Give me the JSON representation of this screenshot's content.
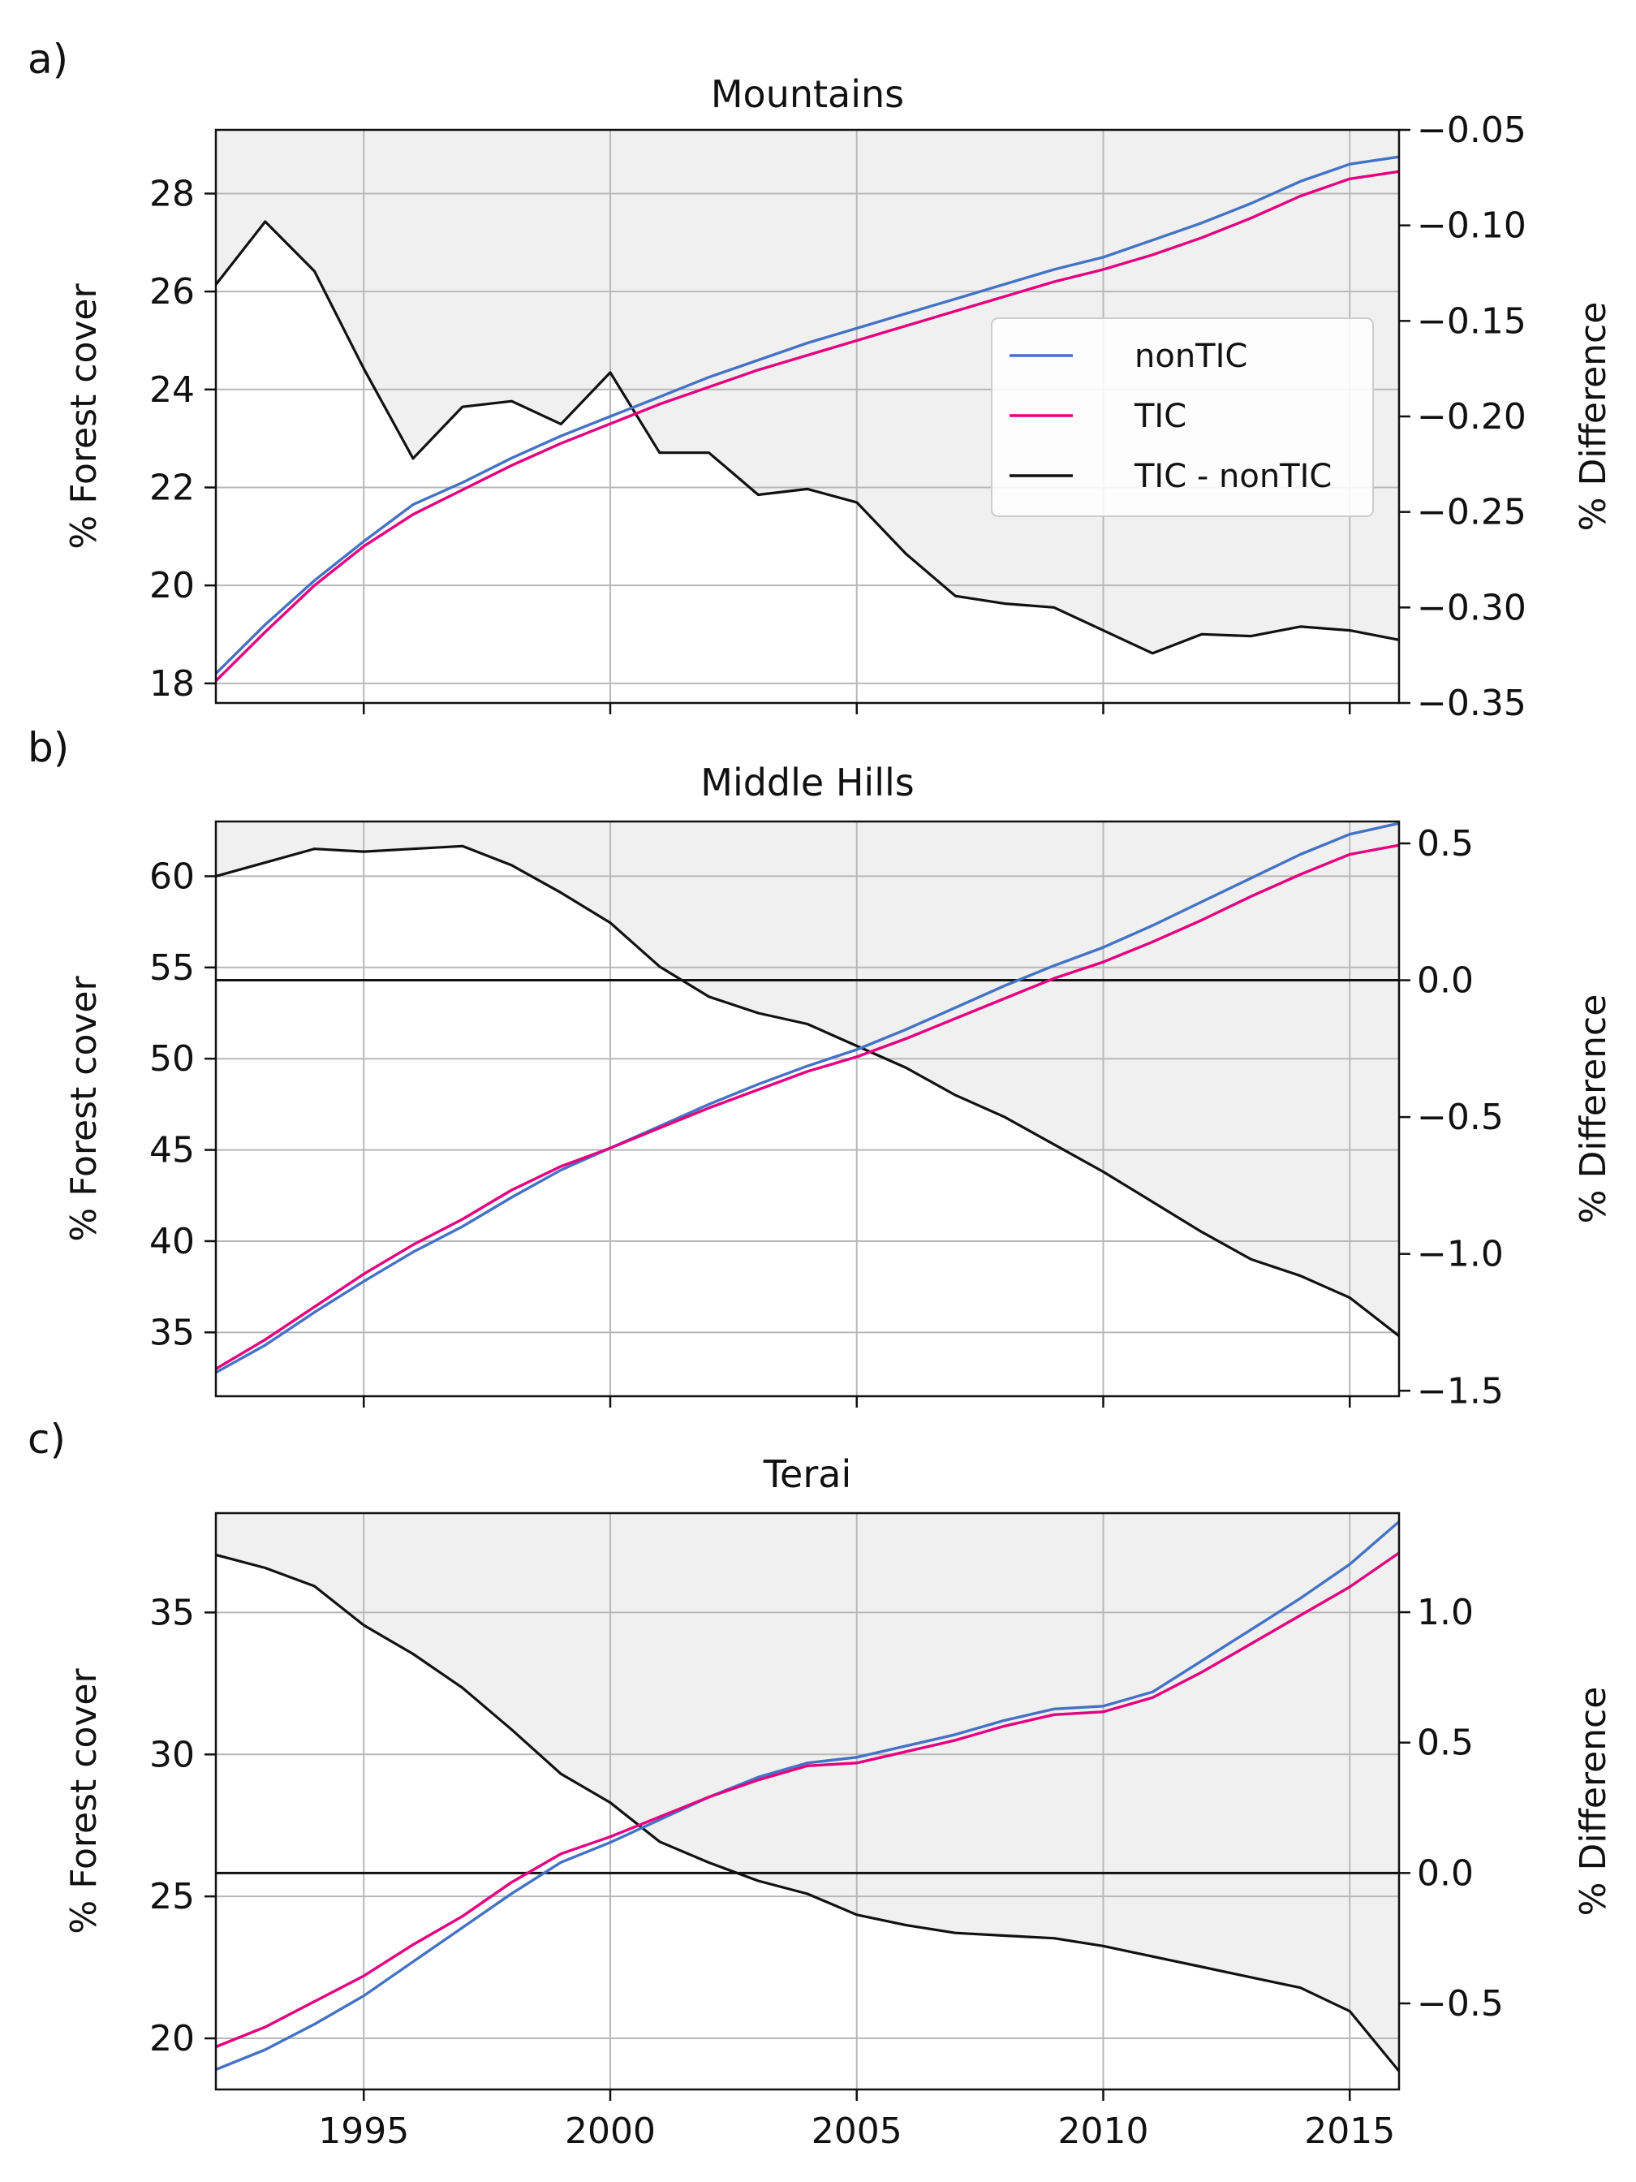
{
  "chart_data": [
    {
      "type": "line",
      "panel_label": "a)",
      "title": "Mountains",
      "xlabel": "",
      "ylabel": "% Forest cover",
      "ylabel_right": "% Difference",
      "xlim": [
        1992,
        2016
      ],
      "ylim": [
        17.6,
        29.3
      ],
      "ylim_right": [
        -0.35,
        -0.05
      ],
      "yticks": [
        18,
        20,
        22,
        24,
        26,
        28
      ],
      "yticks_right": [
        -0.35,
        -0.3,
        -0.25,
        -0.2,
        -0.15,
        -0.1,
        -0.05
      ],
      "ytick_labels_right": [
        "−0.35",
        "−0.30",
        "−0.25",
        "−0.20",
        "−0.15",
        "−0.10",
        "−0.05"
      ],
      "x": [
        1992,
        1993,
        1994,
        1995,
        1996,
        1997,
        1998,
        1999,
        2000,
        2001,
        2002,
        2003,
        2004,
        2005,
        2006,
        2007,
        2008,
        2009,
        2010,
        2011,
        2012,
        2013,
        2014,
        2015,
        2016
      ],
      "series": [
        {
          "name": "nonTIC",
          "axis": "left",
          "color": "#4472c4",
          "values": [
            18.2,
            19.2,
            20.1,
            20.9,
            21.65,
            22.1,
            22.6,
            23.05,
            23.45,
            23.85,
            24.25,
            24.6,
            24.95,
            25.25,
            25.55,
            25.85,
            26.15,
            26.45,
            26.7,
            27.05,
            27.4,
            27.8,
            28.25,
            28.6,
            28.75
          ]
        },
        {
          "name": "TIC",
          "axis": "left",
          "color": "#e6007e",
          "values": [
            18.05,
            19.05,
            20.0,
            20.8,
            21.45,
            21.95,
            22.45,
            22.9,
            23.3,
            23.7,
            24.05,
            24.4,
            24.7,
            25.0,
            25.3,
            25.6,
            25.9,
            26.2,
            26.45,
            26.75,
            27.1,
            27.5,
            27.95,
            28.3,
            28.45
          ]
        },
        {
          "name": "TIC - nonTIC",
          "axis": "right",
          "color": "#111111",
          "filled": true,
          "values": [
            -0.131,
            -0.098,
            -0.124,
            -0.175,
            -0.222,
            -0.195,
            -0.192,
            -0.204,
            -0.177,
            -0.219,
            -0.219,
            -0.241,
            -0.238,
            -0.245,
            -0.272,
            -0.294,
            -0.298,
            -0.3,
            -0.312,
            -0.324,
            -0.314,
            -0.315,
            -0.31,
            -0.312,
            -0.317
          ]
        }
      ],
      "legend": {
        "entries": [
          "nonTIC",
          "TIC",
          "TIC - nonTIC"
        ],
        "placement": "center-right"
      },
      "grid": true
    },
    {
      "type": "line",
      "panel_label": "b)",
      "title": "Middle Hills",
      "xlabel": "",
      "ylabel": "% Forest cover",
      "ylabel_right": "% Difference",
      "xlim": [
        1992,
        2016
      ],
      "ylim": [
        31.5,
        63.0
      ],
      "ylim_right": [
        -1.52,
        0.58
      ],
      "yticks": [
        35,
        40,
        45,
        50,
        55,
        60
      ],
      "yticks_right": [
        -1.5,
        -1.0,
        -0.5,
        0.0,
        0.5
      ],
      "ytick_labels_right": [
        "−1.5",
        "−1.0",
        "−0.5",
        "0.0",
        "0.5"
      ],
      "zero_line": true,
      "x": [
        1992,
        1993,
        1994,
        1995,
        1996,
        1997,
        1998,
        1999,
        2000,
        2001,
        2002,
        2003,
        2004,
        2005,
        2006,
        2007,
        2008,
        2009,
        2010,
        2011,
        2012,
        2013,
        2014,
        2015,
        2016
      ],
      "series": [
        {
          "name": "nonTIC",
          "axis": "left",
          "color": "#4472c4",
          "values": [
            32.8,
            34.3,
            36.1,
            37.8,
            39.4,
            40.8,
            42.4,
            43.9,
            45.1,
            46.3,
            47.5,
            48.6,
            49.6,
            50.5,
            51.6,
            52.8,
            54.0,
            55.1,
            56.1,
            57.3,
            58.6,
            59.9,
            61.2,
            62.3,
            62.9
          ]
        },
        {
          "name": "TIC",
          "axis": "left",
          "color": "#e6007e",
          "values": [
            33.0,
            34.6,
            36.4,
            38.2,
            39.8,
            41.2,
            42.8,
            44.1,
            45.1,
            46.2,
            47.3,
            48.3,
            49.3,
            50.1,
            51.1,
            52.2,
            53.3,
            54.4,
            55.3,
            56.4,
            57.6,
            58.9,
            60.1,
            61.2,
            61.7
          ]
        },
        {
          "name": "TIC - nonTIC",
          "axis": "right",
          "color": "#111111",
          "filled": true,
          "values": [
            0.38,
            0.43,
            0.48,
            0.47,
            0.48,
            0.49,
            0.42,
            0.32,
            0.21,
            0.05,
            -0.06,
            -0.12,
            -0.16,
            -0.24,
            -0.32,
            -0.42,
            -0.5,
            -0.6,
            -0.7,
            -0.81,
            -0.92,
            -1.02,
            -1.08,
            -1.16,
            -1.3
          ]
        }
      ],
      "grid": true
    },
    {
      "type": "line",
      "panel_label": "c)",
      "title": "Terai",
      "xlabel": "",
      "ylabel": "% Forest cover",
      "ylabel_right": "% Difference",
      "xlim": [
        1992,
        2016
      ],
      "ylim": [
        18.2,
        38.5
      ],
      "ylim_right": [
        -0.83,
        1.38
      ],
      "yticks": [
        20,
        25,
        30,
        35
      ],
      "yticks_right": [
        -0.5,
        0.0,
        0.5,
        1.0
      ],
      "ytick_labels_right": [
        "−0.5",
        "0.0",
        "0.5",
        "1.0"
      ],
      "xticks": [
        1995,
        2000,
        2005,
        2010,
        2015
      ],
      "zero_line": true,
      "x": [
        1992,
        1993,
        1994,
        1995,
        1996,
        1997,
        1998,
        1999,
        2000,
        2001,
        2002,
        2003,
        2004,
        2005,
        2006,
        2007,
        2008,
        2009,
        2010,
        2011,
        2012,
        2013,
        2014,
        2015,
        2016
      ],
      "series": [
        {
          "name": "nonTIC",
          "axis": "left",
          "color": "#4472c4",
          "values": [
            18.9,
            19.6,
            20.5,
            21.5,
            22.7,
            23.9,
            25.1,
            26.2,
            26.9,
            27.7,
            28.5,
            29.2,
            29.7,
            29.9,
            30.3,
            30.7,
            31.2,
            31.6,
            31.7,
            32.2,
            33.3,
            34.4,
            35.5,
            36.7,
            38.2
          ]
        },
        {
          "name": "TIC",
          "axis": "left",
          "color": "#e6007e",
          "values": [
            19.7,
            20.4,
            21.3,
            22.2,
            23.3,
            24.3,
            25.5,
            26.5,
            27.1,
            27.8,
            28.5,
            29.1,
            29.6,
            29.7,
            30.1,
            30.5,
            31.0,
            31.4,
            31.5,
            32.0,
            32.9,
            33.9,
            34.9,
            35.9,
            37.1
          ]
        },
        {
          "name": "TIC - nonTIC",
          "axis": "right",
          "color": "#111111",
          "filled": true,
          "values": [
            1.22,
            1.17,
            1.1,
            0.95,
            0.84,
            0.71,
            0.55,
            0.38,
            0.27,
            0.12,
            0.04,
            -0.03,
            -0.08,
            -0.16,
            -0.2,
            -0.23,
            -0.24,
            -0.25,
            -0.28,
            -0.32,
            -0.36,
            -0.4,
            -0.44,
            -0.53,
            -0.76
          ]
        }
      ],
      "grid": true
    }
  ]
}
